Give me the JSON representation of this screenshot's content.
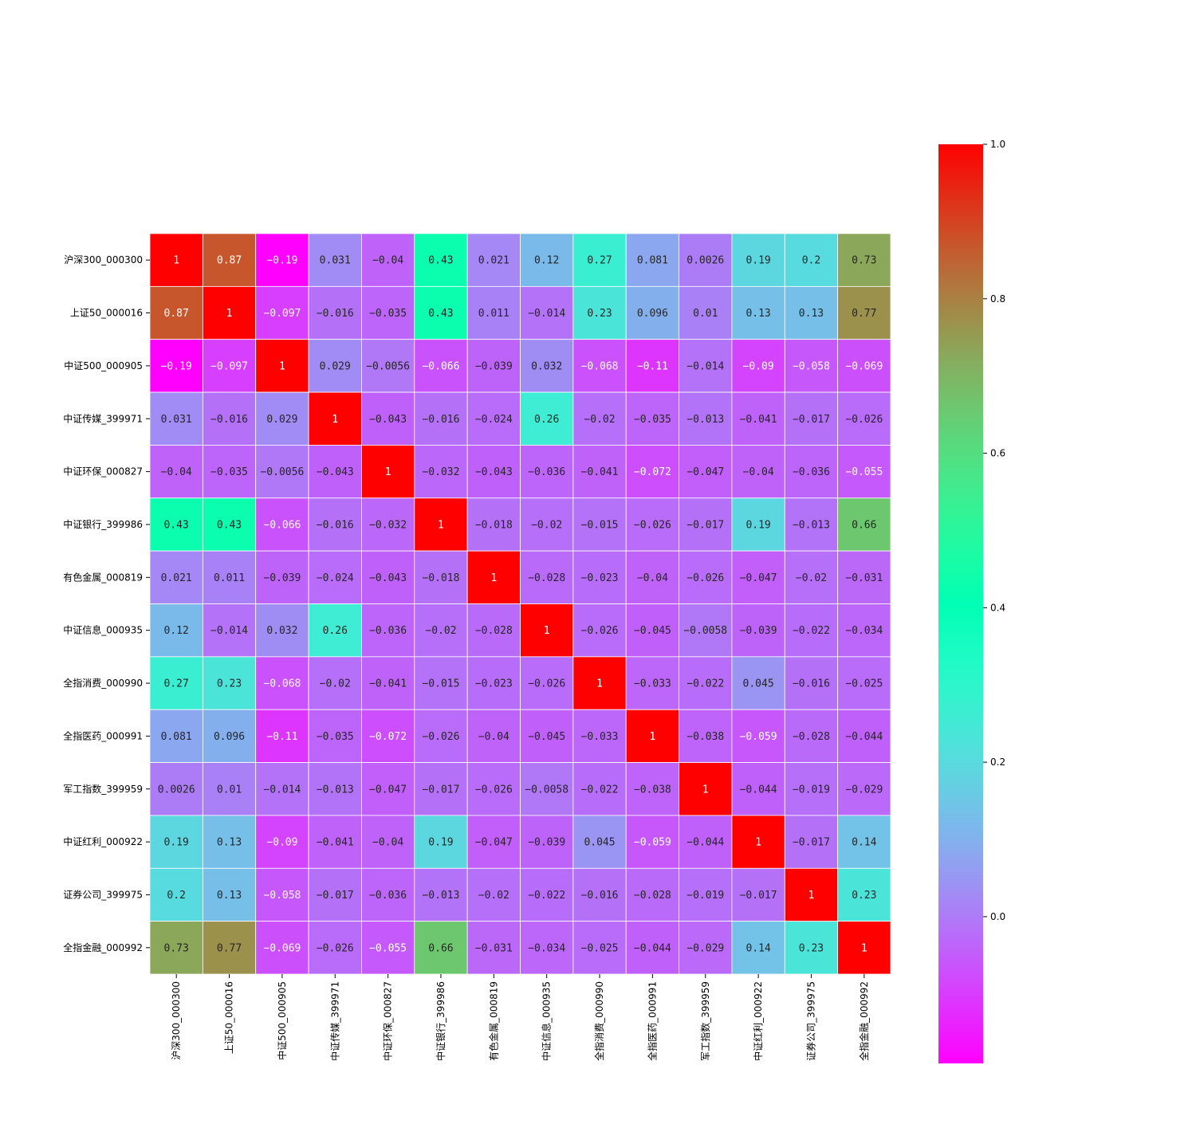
{
  "chart_data": {
    "type": "heatmap",
    "title": "",
    "xlabel": "",
    "ylabel": "",
    "colormap": "rainbow",
    "vmin": -0.19,
    "vmax": 1.0,
    "labels": [
      "沪深300_000300",
      "上证50_000016",
      "中证500_000905",
      "中证传媒_399971",
      "中证环保_000827",
      "中证银行_399986",
      "有色金属_000819",
      "中证信息_000935",
      "全指消费_000990",
      "全指医药_000991",
      "军工指数_399959",
      "中证红利_000922",
      "证券公司_399975",
      "全指金融_000992"
    ],
    "matrix": [
      [
        "1",
        "0.87",
        "-0.19",
        "0.031",
        "-0.04",
        "0.43",
        "0.021",
        "0.12",
        "0.27",
        "0.081",
        "0.0026",
        "0.19",
        "0.2",
        "0.73"
      ],
      [
        "0.87",
        "1",
        "-0.097",
        "-0.016",
        "-0.035",
        "0.43",
        "0.011",
        "-0.014",
        "0.23",
        "0.096",
        "0.01",
        "0.13",
        "0.13",
        "0.77"
      ],
      [
        "-0.19",
        "-0.097",
        "1",
        "0.029",
        "-0.0056",
        "-0.066",
        "-0.039",
        "0.032",
        "-0.068",
        "-0.11",
        "-0.014",
        "-0.09",
        "-0.058",
        "-0.069"
      ],
      [
        "0.031",
        "-0.016",
        "0.029",
        "1",
        "-0.043",
        "-0.016",
        "-0.024",
        "0.26",
        "-0.02",
        "-0.035",
        "-0.013",
        "-0.041",
        "-0.017",
        "-0.026"
      ],
      [
        "-0.04",
        "-0.035",
        "-0.0056",
        "-0.043",
        "1",
        "-0.032",
        "-0.043",
        "-0.036",
        "-0.041",
        "-0.072",
        "-0.047",
        "-0.04",
        "-0.036",
        "-0.055"
      ],
      [
        "0.43",
        "0.43",
        "-0.066",
        "-0.016",
        "-0.032",
        "1",
        "-0.018",
        "-0.02",
        "-0.015",
        "-0.026",
        "-0.017",
        "0.19",
        "-0.013",
        "0.66"
      ],
      [
        "0.021",
        "0.011",
        "-0.039",
        "-0.024",
        "-0.043",
        "-0.018",
        "1",
        "-0.028",
        "-0.023",
        "-0.04",
        "-0.026",
        "-0.047",
        "-0.02",
        "-0.031"
      ],
      [
        "0.12",
        "-0.014",
        "0.032",
        "0.26",
        "-0.036",
        "-0.02",
        "-0.028",
        "1",
        "-0.026",
        "-0.045",
        "-0.0058",
        "-0.039",
        "-0.022",
        "-0.034"
      ],
      [
        "0.27",
        "0.23",
        "-0.068",
        "-0.02",
        "-0.041",
        "-0.015",
        "-0.023",
        "-0.026",
        "1",
        "-0.033",
        "-0.022",
        "0.045",
        "-0.016",
        "-0.025"
      ],
      [
        "0.081",
        "0.096",
        "-0.11",
        "-0.035",
        "-0.072",
        "-0.026",
        "-0.04",
        "-0.045",
        "-0.033",
        "1",
        "-0.038",
        "-0.059",
        "-0.028",
        "-0.044"
      ],
      [
        "0.0026",
        "0.01",
        "-0.014",
        "-0.013",
        "-0.047",
        "-0.017",
        "-0.026",
        "-0.0058",
        "-0.022",
        "-0.038",
        "1",
        "-0.044",
        "-0.019",
        "-0.029"
      ],
      [
        "0.19",
        "0.13",
        "-0.09",
        "-0.041",
        "-0.04",
        "0.19",
        "-0.047",
        "-0.039",
        "0.045",
        "-0.059",
        "-0.044",
        "1",
        "-0.017",
        "0.14"
      ],
      [
        "0.2",
        "0.13",
        "-0.058",
        "-0.017",
        "-0.036",
        "-0.013",
        "-0.02",
        "-0.022",
        "-0.016",
        "-0.028",
        "-0.019",
        "-0.017",
        "1",
        "0.23"
      ],
      [
        "0.73",
        "0.77",
        "-0.069",
        "-0.026",
        "-0.055",
        "0.66",
        "-0.031",
        "-0.034",
        "-0.025",
        "-0.044",
        "-0.029",
        "0.14",
        "0.23",
        "1"
      ]
    ],
    "colorbar": {
      "ticks": [
        0.0,
        0.2,
        0.4,
        0.6,
        0.8,
        1.0
      ],
      "tick_labels": [
        "0.0",
        "0.2",
        "0.4",
        "0.6",
        "0.8",
        "1.0"
      ]
    }
  }
}
